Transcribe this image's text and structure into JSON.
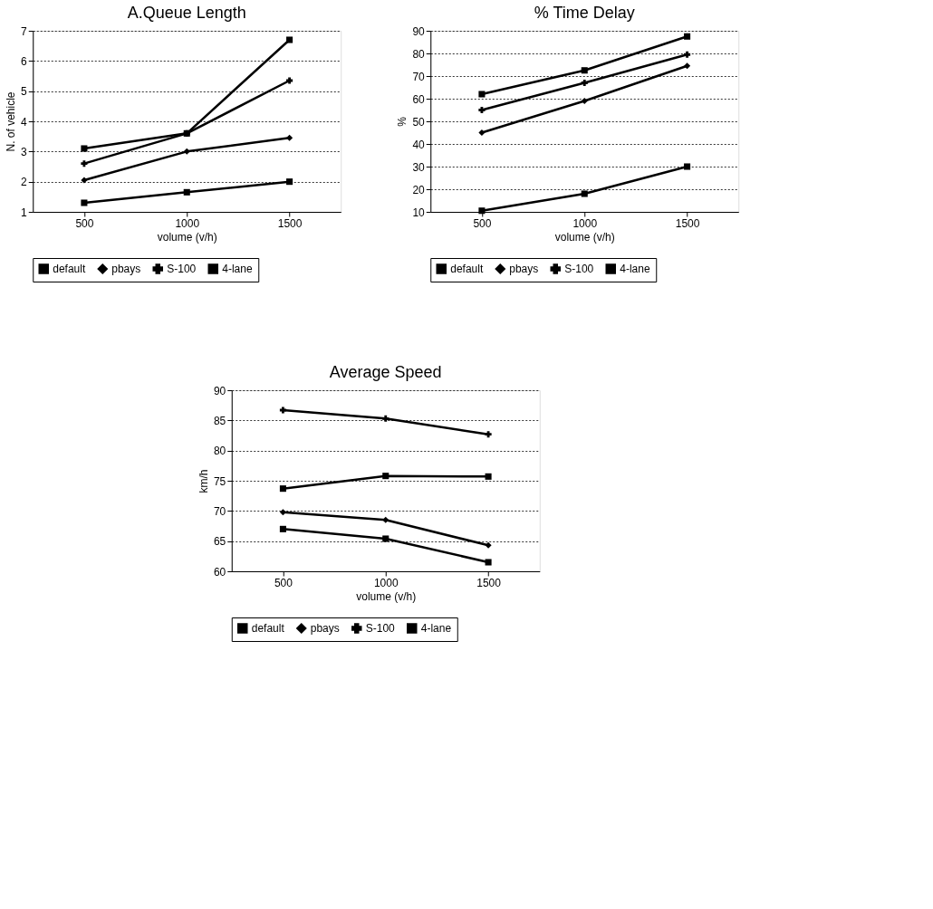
{
  "chart_data": [
    {
      "type": "line",
      "title": "A.Queue Length",
      "xlabel": "volume (v/h)",
      "ylabel": "N. of vehicle",
      "x": [
        500,
        1000,
        1500
      ],
      "xlim": [
        250,
        1750
      ],
      "xticks": [
        500,
        1000,
        1500
      ],
      "ylim": [
        1,
        7
      ],
      "yticks": [
        1,
        2,
        3,
        4,
        5,
        6,
        7
      ],
      "grid": "y",
      "legend": "bottom",
      "line_style": "solid",
      "series": [
        {
          "name": "default",
          "color": "#000000",
          "marker": "square",
          "values": [
            3.1,
            3.6,
            6.7
          ]
        },
        {
          "name": "pbays",
          "color": "#000000",
          "marker": "diamond",
          "values": [
            2.05,
            3.0,
            3.45
          ]
        },
        {
          "name": "S-100",
          "color": "#000000",
          "marker": "cross",
          "values": [
            2.6,
            3.6,
            5.35
          ]
        },
        {
          "name": "4-lane",
          "color": "#000000",
          "marker": "square",
          "values": [
            1.3,
            1.65,
            2.0
          ]
        }
      ]
    },
    {
      "type": "line",
      "title": "% Time Delay",
      "xlabel": "volume (v/h)",
      "ylabel": "%",
      "x": [
        500,
        1000,
        1500
      ],
      "xlim": [
        250,
        1750
      ],
      "xticks": [
        500,
        1000,
        1500
      ],
      "ylim": [
        10,
        90
      ],
      "yticks": [
        10,
        20,
        30,
        40,
        50,
        60,
        70,
        80,
        90
      ],
      "grid": "y",
      "legend": "bottom",
      "line_style": "solid",
      "series": [
        {
          "name": "default",
          "color": "#000000",
          "marker": "square",
          "values": [
            62,
            72.5,
            87.5
          ]
        },
        {
          "name": "pbays",
          "color": "#000000",
          "marker": "diamond",
          "values": [
            45,
            59,
            74.5
          ]
        },
        {
          "name": "S-100",
          "color": "#000000",
          "marker": "cross",
          "values": [
            55,
            67,
            79.5
          ]
        },
        {
          "name": "4-lane",
          "color": "#000000",
          "marker": "square",
          "values": [
            10.5,
            18,
            30
          ]
        }
      ]
    },
    {
      "type": "line",
      "title": "Average Speed",
      "xlabel": "volume (v/h)",
      "ylabel": "km/h",
      "x": [
        500,
        1000,
        1500
      ],
      "xlim": [
        250,
        1750
      ],
      "xticks": [
        500,
        1000,
        1500
      ],
      "ylim": [
        60,
        90
      ],
      "yticks": [
        60,
        65,
        70,
        75,
        80,
        85,
        90
      ],
      "grid": "y",
      "legend": "bottom",
      "line_style": "solid",
      "series": [
        {
          "name": "default",
          "color": "#000000",
          "marker": "square",
          "values": [
            67,
            65.4,
            61.5
          ]
        },
        {
          "name": "pbays",
          "color": "#000000",
          "marker": "diamond",
          "values": [
            69.8,
            68.5,
            64.3
          ]
        },
        {
          "name": "S-100",
          "color": "#000000",
          "marker": "cross",
          "values": [
            86.7,
            85.3,
            82.7
          ]
        },
        {
          "name": "4-lane",
          "color": "#000000",
          "marker": "square",
          "values": [
            73.7,
            75.8,
            75.7
          ]
        }
      ]
    }
  ]
}
